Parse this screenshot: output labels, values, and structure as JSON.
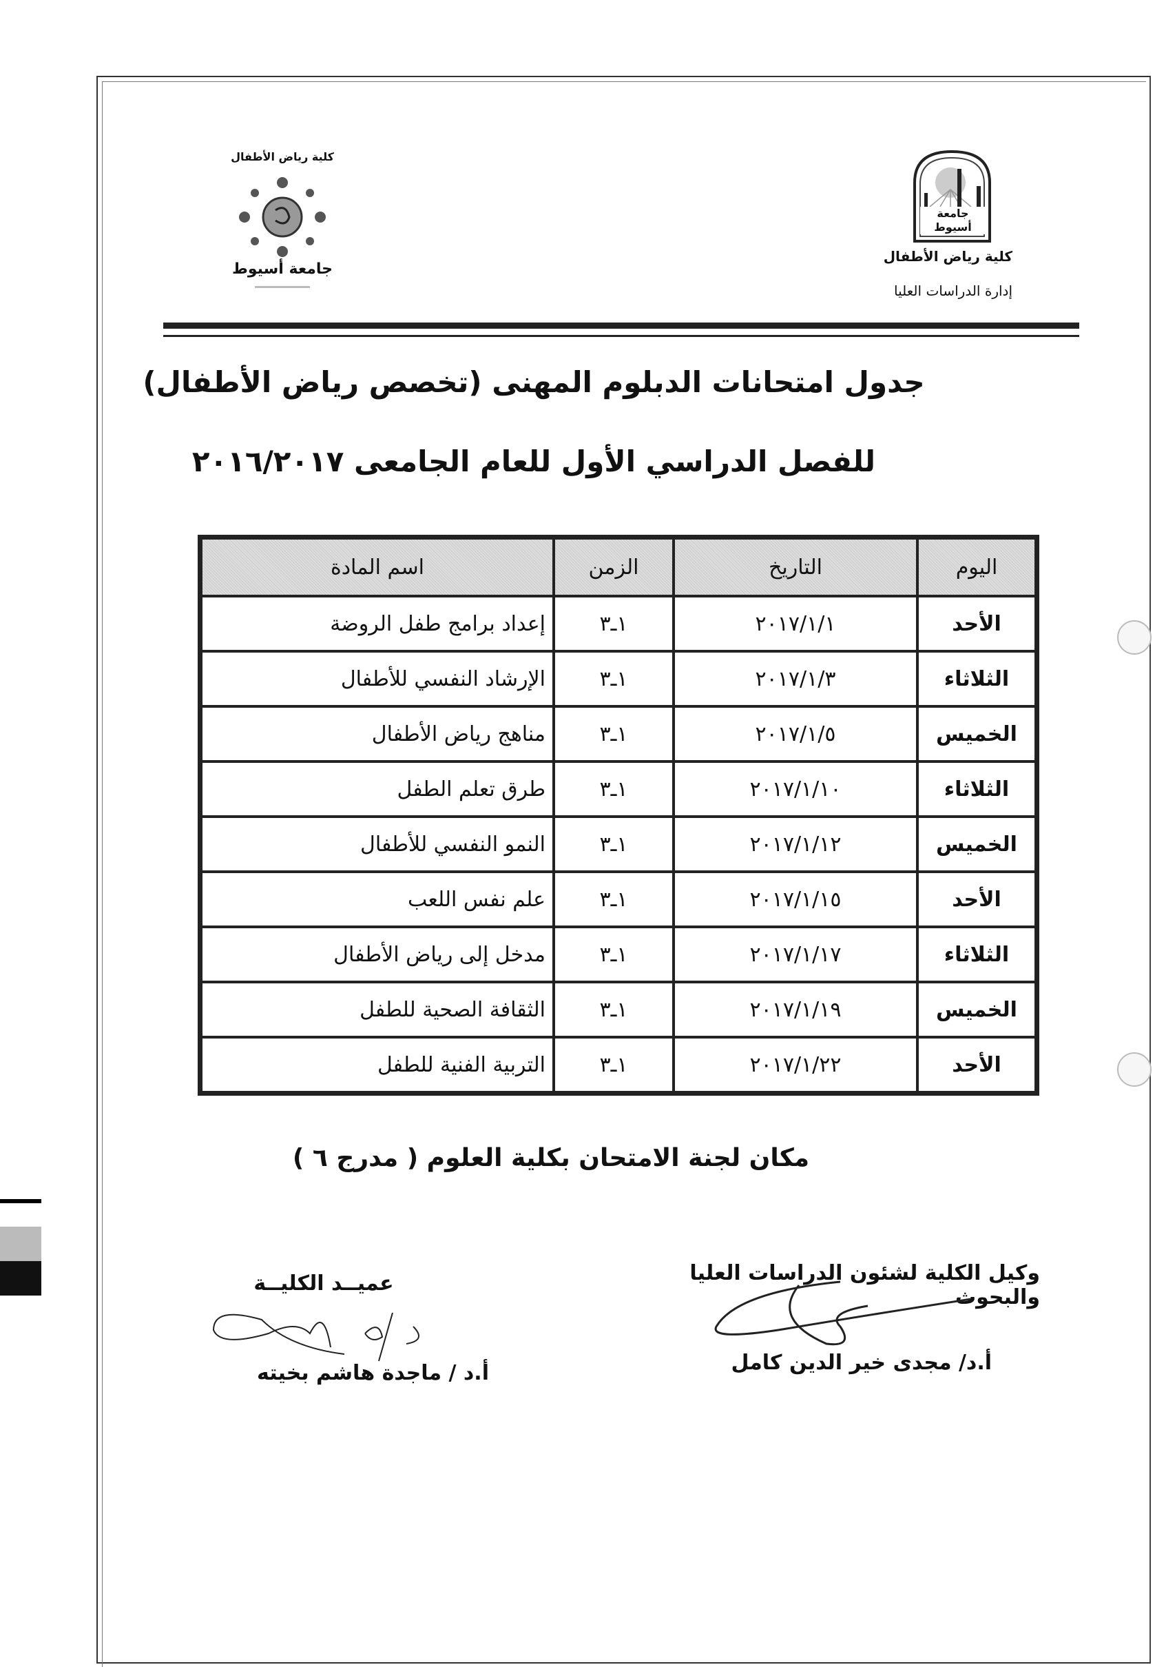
{
  "header": {
    "university_logo_text": "جامعة أسيوط",
    "faculty_name": "كلية رياض الأطفال",
    "department": "إدارة  الدراسات العليا",
    "faculty_logo_text": [
      "كلية رياض الأطفال",
      "جامعة أسيوط"
    ]
  },
  "title": {
    "line1": "جدول امتحانات الدبلوم المهنى (تخصص رياض الأطفال)",
    "line2": "للفصل الدراسي الأول للعام الجامعى ٢٠١٦/٢٠١٧"
  },
  "table": {
    "headers": [
      "اليوم",
      "التاريخ",
      "الزمن",
      "اسم المادة"
    ],
    "rows": [
      {
        "day": "الأحد",
        "date": "٢٠١٧/١/١",
        "time": "١ـ٣",
        "subject": "إعداد برامج طفل الروضة"
      },
      {
        "day": "الثلاثاء",
        "date": "٢٠١٧/١/٣",
        "time": "١ـ٣",
        "subject": "الإرشاد النفسي للأطفال"
      },
      {
        "day": "الخميس",
        "date": "٢٠١٧/١/٥",
        "time": "١ـ٣",
        "subject": "مناهج رياض الأطفال"
      },
      {
        "day": "الثلاثاء",
        "date": "٢٠١٧/١/١٠",
        "time": "١ـ٣",
        "subject": "طرق تعلم الطفل"
      },
      {
        "day": "الخميس",
        "date": "٢٠١٧/١/١٢",
        "time": "١ـ٣",
        "subject": "النمو النفسي للأطفال"
      },
      {
        "day": "الأحد",
        "date": "٢٠١٧/١/١٥",
        "time": "١ـ٣",
        "subject": "علم نفس اللعب"
      },
      {
        "day": "الثلاثاء",
        "date": "٢٠١٧/١/١٧",
        "time": "١ـ٣",
        "subject": "مدخل إلى رياض الأطفال"
      },
      {
        "day": "الخميس",
        "date": "٢٠١٧/١/١٩",
        "time": "١ـ٣",
        "subject": "الثقافة الصحية للطفل"
      },
      {
        "day": "الأحد",
        "date": "٢٠١٧/١/٢٢",
        "time": "١ـ٣",
        "subject": "التربية الفنية للطفل"
      }
    ]
  },
  "location": "مكان لجنة الامتحان بكلية العلوم  ( مدرج ٦ )",
  "signatures": {
    "vice_dean_title": "وكيل الكلية لشئون الدراسات العليا والبحوث",
    "vice_dean_name": "أ.د/ مجدى خير الدين كامل",
    "dean_title": "عميــد الكليــة",
    "dean_name": "أ.د / ماجدة هاشم بخيته"
  }
}
